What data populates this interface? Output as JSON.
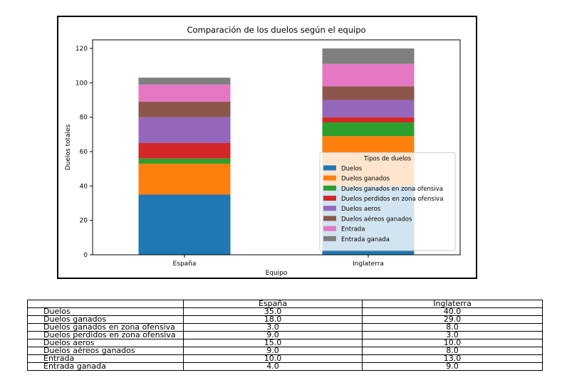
{
  "chart_data": {
    "type": "bar",
    "stacked": true,
    "title": "Comparación de los duelos según el equipo",
    "xlabel": "Equipo",
    "ylabel": "Duelos totales",
    "ylim": [
      0,
      125
    ],
    "yticks": [
      0,
      20,
      40,
      60,
      80,
      100,
      120
    ],
    "categories": [
      "España",
      "Inglaterra"
    ],
    "legend_title": "Tipos de duelos",
    "legend_position": "lower-right",
    "series": [
      {
        "name": "Duelos",
        "color": "#1f77b4",
        "values": [
          35.0,
          40.0
        ]
      },
      {
        "name": "Duelos ganados",
        "color": "#ff7f0e",
        "values": [
          18.0,
          29.0
        ]
      },
      {
        "name": "Duelos ganados en zona ofensiva",
        "color": "#2ca02c",
        "values": [
          3.0,
          8.0
        ]
      },
      {
        "name": "Duelos perdidos en zona ofensiva",
        "color": "#d62728",
        "values": [
          9.0,
          3.0
        ]
      },
      {
        "name": "Duelos aeros",
        "color": "#9467bd",
        "values": [
          15.0,
          10.0
        ]
      },
      {
        "name": "Duelos aéreos ganados",
        "color": "#8c564b",
        "values": [
          9.0,
          8.0
        ]
      },
      {
        "name": "Entrada",
        "color": "#e377c2",
        "values": [
          10.0,
          13.0
        ]
      },
      {
        "name": "Entrada ganada",
        "color": "#7f7f7f",
        "values": [
          4.0,
          9.0
        ]
      }
    ]
  },
  "table": {
    "columns": [
      "España",
      "Inglaterra"
    ],
    "rows": [
      {
        "label": "Duelos",
        "values": [
          "35.0",
          "40.0"
        ]
      },
      {
        "label": "Duelos ganados",
        "values": [
          "18.0",
          "29.0"
        ]
      },
      {
        "label": "Duelos ganados en zona ofensiva",
        "values": [
          "3.0",
          "8.0"
        ]
      },
      {
        "label": "Duelos perdidos en zona ofensiva",
        "values": [
          "9.0",
          "3.0"
        ]
      },
      {
        "label": "Duelos aeros",
        "values": [
          "15.0",
          "10.0"
        ]
      },
      {
        "label": "Duelos aéreos ganados",
        "values": [
          "9.0",
          "8.0"
        ]
      },
      {
        "label": "Entrada",
        "values": [
          "10.0",
          "13.0"
        ]
      },
      {
        "label": "Entrada ganada",
        "values": [
          "4.0",
          "9.0"
        ]
      }
    ]
  }
}
